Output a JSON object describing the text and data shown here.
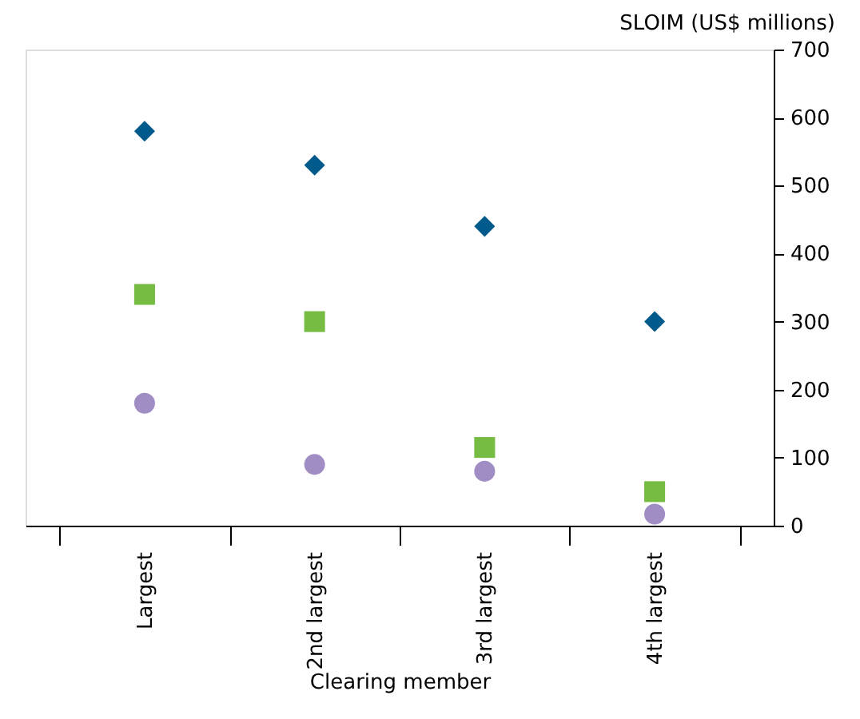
{
  "chart_data": {
    "type": "scatter",
    "xlabel": "Clearing member",
    "ylabel": "SLOIM (US$ millions)",
    "categories": [
      "Largest",
      "2nd largest",
      "3rd largest",
      "4th largest"
    ],
    "series": [
      {
        "color": "#005a8c",
        "marker": "diamond",
        "values": [
          580,
          530,
          440,
          300
        ]
      },
      {
        "color": "#76bc43",
        "marker": "square",
        "values": [
          340,
          300,
          115,
          50
        ]
      },
      {
        "color": "#a08dc3",
        "marker": "circle",
        "values": [
          180,
          90,
          80,
          17
        ]
      }
    ],
    "ylim": [
      0,
      700
    ],
    "yticks": [
      0,
      100,
      200,
      300,
      400,
      500,
      600,
      700
    ],
    "grid": false
  }
}
